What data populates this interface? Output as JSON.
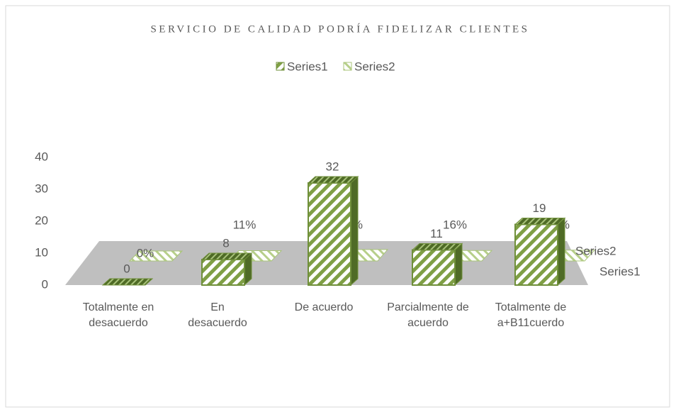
{
  "chart_data": {
    "type": "bar3d",
    "title": "SERVICIO DE CALIDAD PODRÍA FIDELIZAR CLIENTES",
    "categories": [
      "Totalmente en desacuerdo",
      "En desacuerdo",
      "De acuerdo",
      "Parcialmente de acuerdo",
      "Totalmente de a+B11cuerdo"
    ],
    "series": [
      {
        "name": "Series1",
        "color": "#6f8f3a",
        "values": [
          0,
          8,
          32,
          11,
          19
        ]
      },
      {
        "name": "Series2",
        "color": "#a9c47a",
        "values": [
          0,
          0.11,
          0.46,
          0.16,
          0.27
        ],
        "value_labels": [
          "0%",
          "11%",
          "46%",
          "16%",
          "27%"
        ]
      }
    ],
    "ylim": [
      0,
      40
    ],
    "yticks": [
      0,
      10,
      20,
      30,
      40
    ],
    "grid": false,
    "legend": "top"
  }
}
